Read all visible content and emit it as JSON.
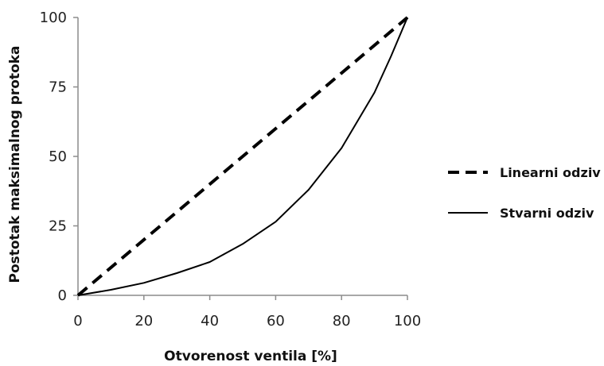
{
  "chart_data": {
    "type": "line",
    "title": "",
    "xlabel": "Otvorenost ventila [%]",
    "ylabel": "Postotak maksimalnog protoka",
    "xlim": [
      0,
      100
    ],
    "ylim": [
      0,
      100
    ],
    "x_ticks": [
      0,
      20,
      40,
      60,
      80,
      100
    ],
    "y_ticks": [
      0,
      25,
      50,
      75,
      100
    ],
    "grid": false,
    "legend_position": "right",
    "series": [
      {
        "name": "Linearni odziv",
        "style": "dashed",
        "color": "#000000",
        "x": [
          0,
          100
        ],
        "y": [
          0,
          100
        ]
      },
      {
        "name": "Stvarni odziv",
        "style": "solid",
        "color": "#000000",
        "x": [
          0,
          10,
          20,
          30,
          40,
          50,
          60,
          70,
          80,
          90,
          95,
          100
        ],
        "y": [
          0,
          2,
          4.5,
          8,
          12,
          18.5,
          26.5,
          38,
          53,
          73,
          86,
          100
        ]
      }
    ]
  }
}
